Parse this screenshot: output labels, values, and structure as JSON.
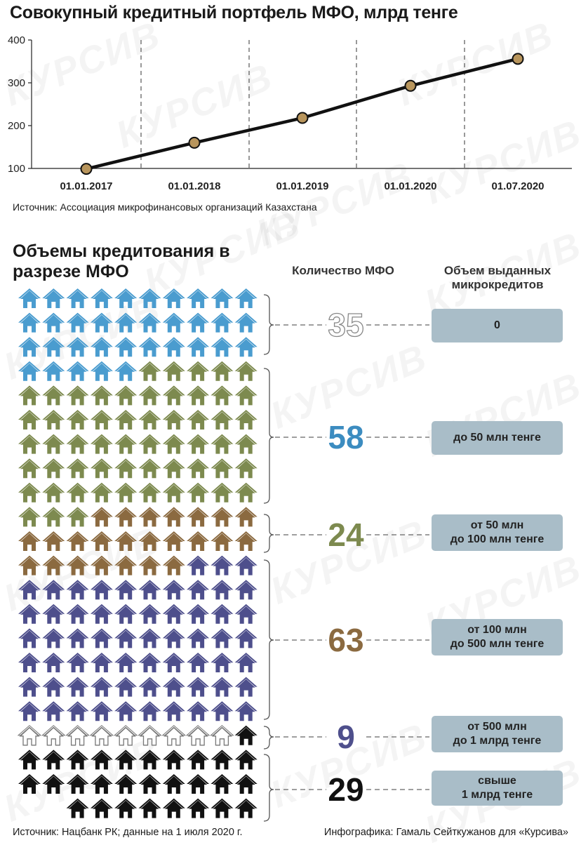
{
  "chart_data": [
    {
      "type": "line",
      "title": "Совокупный кредитный портфель МФО, млрд тенге",
      "categories": [
        "01.01.2017",
        "01.01.2018",
        "01.01.2019",
        "01.01.2020",
        "01.07.2020"
      ],
      "values": [
        99,
        160,
        218,
        293,
        356
      ],
      "y_ticks": [
        "100",
        "200",
        "300",
        "400"
      ],
      "ylim": [
        100,
        400
      ],
      "source": "Источник: Ассоциация микрофинансовых организаций Казахстана",
      "colors": {
        "line": "#111111",
        "marker": "#b8955c",
        "axis": "#222222"
      }
    },
    {
      "type": "pictogram",
      "title": "Объемы кредитования в разрезе МФО",
      "col_count_header": "Количество МФО",
      "col_volume_header": "Объем выданных микрокредитов",
      "total": 218,
      "groups": [
        {
          "count": 35,
          "label": "0",
          "color": "#4a9ccf",
          "outline": true
        },
        {
          "count": 58,
          "label": "до 50 млн тенге",
          "color": "#7d8a4f",
          "count_color": "#3c8cc0"
        },
        {
          "count": 24,
          "label": "от 50 млн до 100 млн тенге",
          "color": "#8b6a40",
          "count_color": "#7d8a4f"
        },
        {
          "count": 63,
          "label": "от 100 млн до 500 млн тенге",
          "color": "#4e4f8c",
          "count_color": "#8b6a40"
        },
        {
          "count": 9,
          "label": "от 500 млн до 1 млрд тенге",
          "color": "#ffffff",
          "count_color": "#4e4f8c"
        },
        {
          "count": 29,
          "label": "свыше 1 млрд тенге",
          "color": "#111111",
          "count_color": "#111111"
        }
      ]
    }
  ],
  "footer": {
    "left": "Источник: Нацбанк РК; данные на 1 июля 2020 г.",
    "right": "Инфографика: Гамаль Сейткужанов для «Курсива»"
  },
  "watermark": "КУРСИВ"
}
